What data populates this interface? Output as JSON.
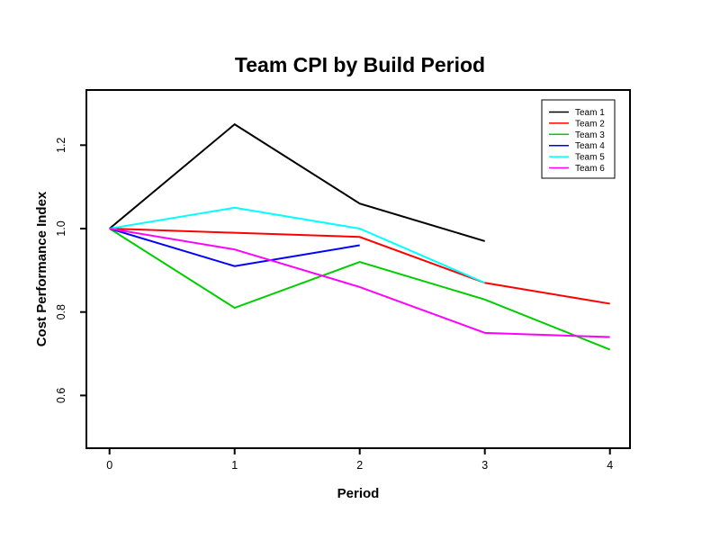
{
  "window": {
    "background": "#ffffff"
  },
  "chart_data": {
    "type": "line",
    "title": "Team CPI by Build Period",
    "xlabel": "Period",
    "ylabel": "Cost Performance Index",
    "x_ticks": [
      "0",
      "1",
      "2",
      "3",
      "4"
    ],
    "y_ticks": [
      "0.6",
      "0.8",
      "1.0",
      "1.2"
    ],
    "xlim": [
      -0.16,
      4.16
    ],
    "ylim": [
      0.47,
      1.33
    ],
    "grid": false,
    "legend_position": "top-right",
    "axis_color": "#000000",
    "series": [
      {
        "name": "Team 1",
        "color": "#000000",
        "x": [
          0,
          1,
          2,
          3
        ],
        "values": [
          1.0,
          1.25,
          1.06,
          0.97
        ]
      },
      {
        "name": "Team 2",
        "color": "#FF0000",
        "x": [
          0,
          1,
          2,
          3,
          4
        ],
        "values": [
          1.0,
          0.99,
          0.98,
          0.87,
          0.82
        ]
      },
      {
        "name": "Team 3",
        "color": "#00CD00",
        "x": [
          0,
          1,
          2,
          3,
          4
        ],
        "values": [
          1.0,
          0.81,
          0.92,
          0.83,
          0.71
        ]
      },
      {
        "name": "Team 4",
        "color": "#0000FF",
        "x": [
          0,
          1,
          2
        ],
        "values": [
          1.0,
          0.91,
          0.96
        ]
      },
      {
        "name": "Team 5",
        "color": "#00FFFF",
        "x": [
          0,
          1,
          2,
          3
        ],
        "values": [
          1.0,
          1.05,
          1.0,
          0.87
        ]
      },
      {
        "name": "Team 6",
        "color": "#FF00FF",
        "x": [
          0,
          1,
          2,
          3,
          4
        ],
        "values": [
          1.0,
          0.95,
          0.86,
          0.75,
          0.74
        ]
      }
    ]
  }
}
